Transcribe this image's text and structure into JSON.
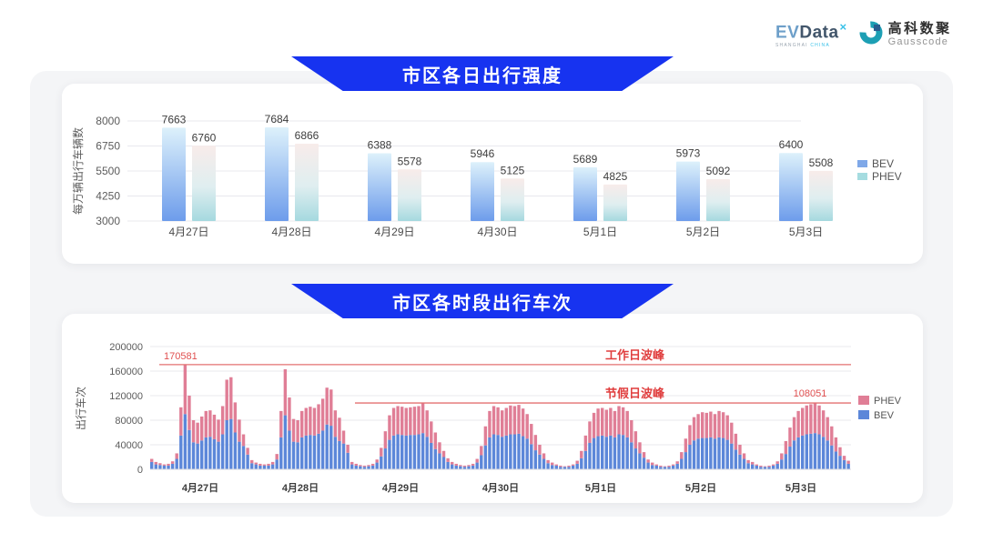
{
  "header": {
    "evdata": {
      "ev": "EV",
      "data": "Data",
      "mark": "×",
      "sub_left": "SHANGHAI",
      "sub_right": "CHINA"
    },
    "gausscode": {
      "cn": "高科数聚",
      "en": "Gausscode"
    }
  },
  "colors": {
    "banner_blue": "#1733f0",
    "bev_gradient_top": "#ddf1fb",
    "bev_gradient_bottom": "#6d9ceb",
    "phev_gradient_top": "#f8ecea",
    "phev_gradient_bottom": "#a5d9df",
    "legend_bev_top": "#7fa8e8",
    "legend_phev_top": "#a5dce0",
    "stack_bev_blue": "#5c87d9",
    "stack_phev_pink": "#e07e96",
    "annotation_line_red": "#e47070",
    "annotation_text_red": "#e03e3e",
    "gridline": "#e8e8ee",
    "axis_text": "#5c5c5c",
    "value_label": "#3d3d3d"
  },
  "chart_data": [
    {
      "type": "bar",
      "title": "市区各日出行强度",
      "ylabel": "每万辆出行车辆数",
      "categories": [
        "4月27日",
        "4月28日",
        "4月29日",
        "4月30日",
        "5月1日",
        "5月2日",
        "5月3日"
      ],
      "series": [
        {
          "name": "BEV",
          "values": [
            7663,
            7684,
            6388,
            5946,
            5689,
            5973,
            6400
          ]
        },
        {
          "name": "PHEV",
          "values": [
            6760,
            6866,
            5578,
            5125,
            4825,
            5092,
            5508
          ]
        }
      ],
      "ylim": [
        3000,
        8000
      ],
      "yticks": [
        3000,
        4250,
        5500,
        6750,
        8000
      ],
      "grid": true,
      "legend_position": "right",
      "legend": [
        "BEV",
        "PHEV"
      ]
    },
    {
      "type": "bar",
      "stacked": true,
      "title": "市区各时段出行车次",
      "ylabel": "出行车次",
      "categories": [
        "4月27日",
        "4月28日",
        "4月29日",
        "4月30日",
        "5月1日",
        "5月2日",
        "5月3日"
      ],
      "hours_per_day": 24,
      "ylim": [
        0,
        200000
      ],
      "yticks": [
        0,
        40000,
        80000,
        120000,
        160000,
        200000
      ],
      "grid": true,
      "legend_position": "right",
      "legend": [
        "PHEV",
        "BEV"
      ],
      "annotations": {
        "workday_peak": {
          "label": "工作日波峰",
          "value": 170581,
          "point_label": "170581"
        },
        "holiday_peak": {
          "label": "节假日波峰",
          "value": 108051,
          "point_label": "108051"
        }
      },
      "series": [
        {
          "name": "BEV",
          "days": [
            [
              12000,
              8000,
              7000,
              6000,
              6000,
              9000,
              17000,
              55000,
              90000,
              64000,
              44000,
              42000,
              47000,
              52000,
              53000,
              49000,
              45000,
              57000,
              80000,
              82000,
              60000,
              45000,
              38000,
              24000
            ],
            [
              10000,
              8000,
              6000,
              6000,
              6000,
              8000,
              16000,
              52000,
              88000,
              63000,
              45000,
              44000,
              52000,
              55000,
              56000,
              55000,
              58000,
              63000,
              73000,
              71000,
              53000,
              46000,
              42000,
              27000
            ],
            [
              8000,
              6000,
              5000,
              4000,
              5000,
              6000,
              11000,
              21000,
              34000,
              48000,
              55000,
              57000,
              56000,
              55000,
              56000,
              56000,
              57000,
              59000,
              53000,
              43000,
              33000,
              26000,
              20000,
              12000
            ],
            [
              8000,
              6000,
              5000,
              4000,
              5000,
              6000,
              11000,
              23000,
              39000,
              52000,
              57000,
              56000,
              53000,
              55000,
              57000,
              57000,
              58000,
              54000,
              50000,
              41000,
              31000,
              24000,
              17000,
              10000
            ],
            [
              7000,
              6000,
              4000,
              4000,
              4000,
              6000,
              9000,
              18000,
              30000,
              43000,
              51000,
              54000,
              55000,
              53000,
              55000,
              52000,
              57000,
              56000,
              52000,
              44000,
              34000,
              26000,
              19000,
              11000
            ],
            [
              7000,
              6000,
              4000,
              4000,
              4000,
              6000,
              9000,
              17000,
              28000,
              40000,
              47000,
              50000,
              51000,
              51000,
              52000,
              50000,
              52000,
              51000,
              48000,
              42000,
              32000,
              24000,
              17000,
              10000
            ],
            [
              8000,
              6000,
              4000,
              4000,
              4000,
              6000,
              9000,
              16000,
              25000,
              37000,
              47000,
              52000,
              55000,
              57000,
              58000,
              59000,
              57000,
              53000,
              47000,
              39000,
              29000,
              22000,
              15000,
              9000
            ]
          ]
        },
        {
          "name": "PHEV",
          "days": [
            [
              5000,
              4000,
              3000,
              2000,
              3000,
              4000,
              9000,
              46000,
              80581,
              56000,
              36000,
              34000,
              39000,
              43000,
              43000,
              40000,
              36000,
              46000,
              66000,
              68000,
              49000,
              36000,
              19000,
              11000
            ],
            [
              5000,
              3000,
              3000,
              2000,
              3000,
              4000,
              9000,
              43000,
              75000,
              54000,
              37000,
              36000,
              43000,
              45000,
              46000,
              45000,
              48000,
              52000,
              60000,
              59000,
              43000,
              38000,
              21000,
              13000
            ],
            [
              4000,
              3000,
              2000,
              2000,
              2000,
              3000,
              5000,
              14000,
              28000,
              40000,
              45000,
              46000,
              46000,
              45000,
              45000,
              46000,
              46000,
              49000,
              43000,
              35000,
              27000,
              18000,
              10000,
              6000
            ],
            [
              4000,
              3000,
              2000,
              2000,
              2000,
              3000,
              6000,
              15000,
              31000,
              43000,
              46000,
              45000,
              43000,
              45000,
              47000,
              46000,
              47000,
              45000,
              40000,
              33000,
              25000,
              16000,
              9000,
              5000
            ],
            [
              4000,
              2000,
              2000,
              1000,
              2000,
              2000,
              5000,
              12000,
              25000,
              35000,
              41000,
              45000,
              45000,
              44000,
              45000,
              43000,
              46000,
              45000,
              43000,
              36000,
              28000,
              18000,
              9000,
              5000
            ],
            [
              4000,
              2000,
              2000,
              1000,
              2000,
              2000,
              4000,
              11000,
              22000,
              32000,
              38000,
              40000,
              42000,
              41000,
              42000,
              40000,
              43000,
              42000,
              40000,
              34000,
              26000,
              16000,
              9000,
              5000
            ],
            [
              4000,
              2000,
              2000,
              1000,
              2000,
              2000,
              4000,
              10000,
              21000,
              31000,
              38000,
              43000,
              45000,
              47000,
              48000,
              49051,
              47000,
              43000,
              38000,
              31000,
              23000,
              14000,
              7000,
              5000
            ]
          ]
        }
      ]
    }
  ]
}
